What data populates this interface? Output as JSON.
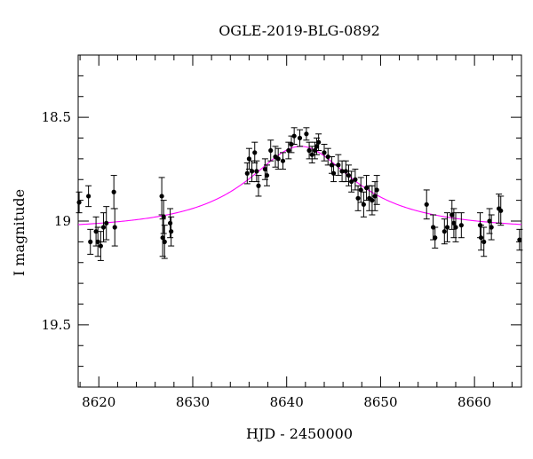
{
  "chart_data": {
    "type": "scatter",
    "title": "OGLE-2019-BLG-0892",
    "xlabel": "HJD - 2450000",
    "ylabel": "I magnitude",
    "xlim": [
      8617.8,
      8665
    ],
    "ylim": [
      18.2,
      19.8
    ],
    "y_inverted": true,
    "x_ticks": [
      8620,
      8630,
      8640,
      8650,
      8660
    ],
    "x_tick_labels": [
      "8620",
      "8630",
      "8640",
      "8650",
      "8660"
    ],
    "y_ticks": [
      18.5,
      19,
      19.5
    ],
    "y_tick_labels": [
      "18.5",
      "19",
      "19.5"
    ],
    "x_minor_step": 2,
    "y_minor_step": 0.1,
    "grid": false,
    "colors": {
      "points": "#000000",
      "model": "#ff00ff"
    },
    "model": {
      "t0": 8641.5,
      "baseline": 19.05,
      "peak": 18.64,
      "width": 7.0
    },
    "series": [
      {
        "kind": "points",
        "x": [
          8617.9,
          8618.9,
          8619.1,
          8619.7,
          8619.9,
          8620.2,
          8620.5,
          8620.8,
          8621.6,
          8621.7,
          8626.7,
          8626.8,
          8626.9,
          8627.0,
          8627.6,
          8627.7,
          8635.8,
          8636.0,
          8636.3,
          8636.6,
          8636.8,
          8637.0,
          8637.7,
          8637.9,
          8638.3,
          8638.8,
          8639.1,
          8639.6,
          8640.2,
          8640.5,
          8640.8,
          8641.4,
          8642.1,
          8642.4,
          8642.7,
          8643.0,
          8643.2,
          8643.4,
          8644.0,
          8644.4,
          8644.8,
          8645.0,
          8645.5,
          8645.9,
          8646.3,
          8646.6,
          8646.9,
          8647.3,
          8647.6,
          8647.9,
          8648.2,
          8648.5,
          8648.8,
          8649.1,
          8649.4,
          8649.6,
          8654.9,
          8655.6,
          8655.8,
          8656.8,
          8657.1,
          8657.6,
          8657.8,
          8658.0,
          8658.6,
          8660.6,
          8660.7,
          8661.0,
          8661.6,
          8661.8,
          8662.6,
          8662.8,
          8664.8
        ],
        "y": [
          18.91,
          18.88,
          19.1,
          19.05,
          19.1,
          19.12,
          19.03,
          19.01,
          18.86,
          19.03,
          18.88,
          19.08,
          18.98,
          19.1,
          19.01,
          19.05,
          18.77,
          18.7,
          18.76,
          18.67,
          18.76,
          18.83,
          18.75,
          18.78,
          18.66,
          18.69,
          18.7,
          18.71,
          18.66,
          18.63,
          18.59,
          18.6,
          18.58,
          18.66,
          18.68,
          18.66,
          18.64,
          18.62,
          18.67,
          18.69,
          18.73,
          18.77,
          18.73,
          18.76,
          18.76,
          18.78,
          18.81,
          18.8,
          18.89,
          18.85,
          18.92,
          18.84,
          18.89,
          18.9,
          18.88,
          18.85,
          18.92,
          19.03,
          19.08,
          19.05,
          19.03,
          18.97,
          19.01,
          19.03,
          19.02,
          19.02,
          19.08,
          19.1,
          19.0,
          19.03,
          18.94,
          18.95,
          19.09
        ],
        "err": [
          0.05,
          0.05,
          0.06,
          0.07,
          0.07,
          0.07,
          0.07,
          0.08,
          0.08,
          0.09,
          0.09,
          0.09,
          0.08,
          0.08,
          0.07,
          0.07,
          0.05,
          0.05,
          0.05,
          0.05,
          0.05,
          0.05,
          0.05,
          0.05,
          0.05,
          0.05,
          0.05,
          0.04,
          0.04,
          0.04,
          0.04,
          0.04,
          0.03,
          0.04,
          0.04,
          0.04,
          0.04,
          0.04,
          0.04,
          0.04,
          0.04,
          0.04,
          0.05,
          0.05,
          0.05,
          0.05,
          0.05,
          0.05,
          0.06,
          0.06,
          0.06,
          0.06,
          0.06,
          0.07,
          0.07,
          0.07,
          0.07,
          0.06,
          0.05,
          0.06,
          0.07,
          0.07,
          0.07,
          0.07,
          0.06,
          0.06,
          0.06,
          0.07,
          0.06,
          0.06,
          0.07,
          0.07,
          0.05
        ]
      }
    ]
  }
}
